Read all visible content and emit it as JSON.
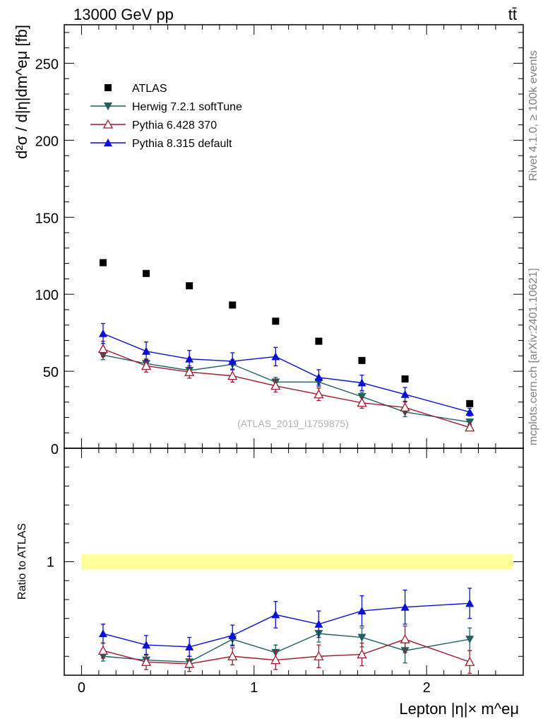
{
  "header": {
    "energy_label": "13000 GeV pp",
    "process_label": "tt̄"
  },
  "side_labels": {
    "rivet": "Rivet 4.1.0, ≥ 100k events",
    "mcplots": "mcplots.cern.ch [arXiv:2401.10621]"
  },
  "watermark": "(ATLAS_2019_I1759875)",
  "colors": {
    "atlas": "#000000",
    "herwig": "#225f61",
    "pythia6": "#a01a2e",
    "pythia8": "#0a10d6",
    "band": "#ffff99"
  },
  "chart_data": [
    {
      "type": "scatter",
      "panel": "main",
      "title": "",
      "ylabel": "d²σ / d|η|dm^eμ [fb]",
      "xlabel": "",
      "ylim": [
        0,
        275
      ],
      "xlim": [
        -0.1,
        2.56
      ],
      "yticks": [
        0,
        50,
        100,
        150,
        200,
        250
      ],
      "x": [
        0.125,
        0.375,
        0.625,
        0.875,
        1.125,
        1.375,
        1.625,
        1.875,
        2.25
      ],
      "series": [
        {
          "name": "ATLAS",
          "marker": "square",
          "values": [
            120.5,
            113.5,
            105.5,
            93.0,
            82.5,
            69.5,
            57.0,
            45.0,
            29.0
          ],
          "errors": [
            0,
            0,
            0,
            0,
            0,
            0,
            0,
            0,
            0
          ]
        },
        {
          "name": "Herwig 7.2.1 softTune",
          "marker": "triangle-down",
          "values": [
            60.5,
            55.0,
            50.5,
            54.5,
            43.0,
            43.0,
            33.5,
            23.5,
            17.0
          ],
          "errors": [
            3.0,
            3.0,
            3.0,
            3.0,
            3.0,
            3.0,
            3.0,
            3.0,
            2.0
          ]
        },
        {
          "name": "Pythia 6.428 370",
          "marker": "triangle-up-open",
          "values": [
            64.5,
            53.5,
            49.5,
            47.0,
            40.5,
            35.0,
            29.5,
            26.5,
            13.5
          ],
          "errors": [
            5.0,
            4.0,
            4.0,
            4.0,
            4.0,
            4.0,
            3.5,
            3.5,
            2.0
          ]
        },
        {
          "name": "Pythia 8.315 default",
          "marker": "triangle-up",
          "values": [
            74.5,
            63.0,
            58.0,
            56.5,
            59.5,
            46.0,
            42.5,
            35.0,
            23.5
          ],
          "errors": [
            6.5,
            6.0,
            5.5,
            5.5,
            6.0,
            5.0,
            5.0,
            4.5,
            2.5
          ]
        }
      ],
      "legend_position": "top-left"
    },
    {
      "type": "scatter",
      "panel": "ratio",
      "title": "",
      "ylabel": "Ratio to ATLAS",
      "xlabel": "Lepton |η|× m^eμ",
      "ylim": [
        0.4,
        1.6
      ],
      "xlim": [
        -0.1,
        2.56
      ],
      "yticks": [
        1
      ],
      "xticks": [
        0,
        1,
        2
      ],
      "band": [
        0.96,
        1.04
      ],
      "x": [
        0.125,
        0.375,
        0.625,
        0.875,
        1.125,
        1.375,
        1.625,
        1.875,
        2.25
      ],
      "series": [
        {
          "name": "Herwig 7.2.1 softTune",
          "values": [
            0.5,
            0.48,
            0.47,
            0.59,
            0.52,
            0.62,
            0.6,
            0.53,
            0.59
          ],
          "errors": [
            0.025,
            0.025,
            0.03,
            0.03,
            0.04,
            0.045,
            0.05,
            0.065,
            0.06
          ]
        },
        {
          "name": "Pythia 6.428 370",
          "values": [
            0.53,
            0.47,
            0.46,
            0.5,
            0.48,
            0.5,
            0.51,
            0.59,
            0.47
          ],
          "errors": [
            0.04,
            0.04,
            0.04,
            0.045,
            0.05,
            0.06,
            0.06,
            0.07,
            0.06
          ]
        },
        {
          "name": "Pythia 8.315 default",
          "values": [
            0.62,
            0.56,
            0.55,
            0.61,
            0.72,
            0.67,
            0.74,
            0.76,
            0.78
          ],
          "errors": [
            0.05,
            0.05,
            0.05,
            0.055,
            0.07,
            0.07,
            0.08,
            0.09,
            0.08
          ]
        }
      ]
    }
  ]
}
